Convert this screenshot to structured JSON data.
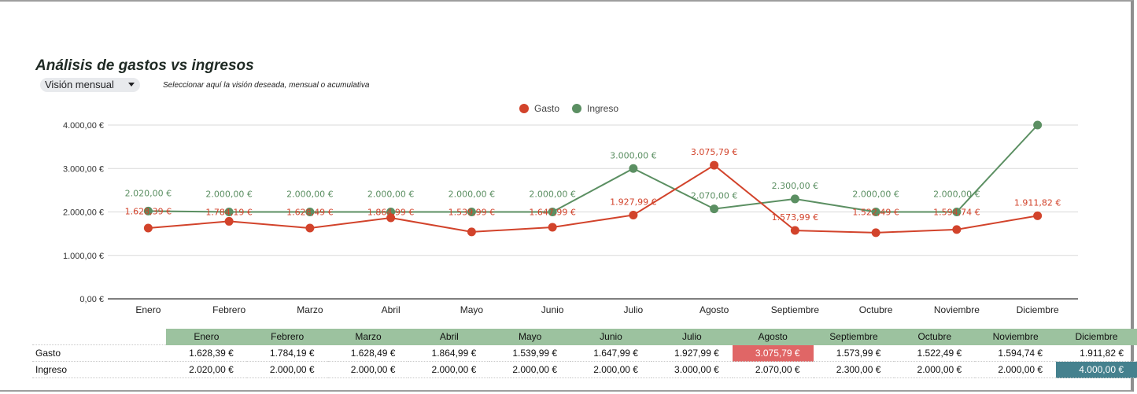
{
  "header": {
    "title": "Análisis de gastos vs ingresos",
    "view_select": {
      "selected": "Visión mensual"
    },
    "hint": "Seleccionar aquí la visión deseada, mensual o acumulativa"
  },
  "colors": {
    "gasto": "#d2432b",
    "ingreso": "#5b8f62",
    "table_header": "#9cc29f",
    "highlight_max_gasto": "#e06666",
    "highlight_max_ingreso": "#45818e"
  },
  "chart_data": {
    "type": "line",
    "title": "",
    "xlabel": "",
    "ylabel": "",
    "ylim": [
      0,
      4000
    ],
    "yticks": [
      0,
      1000,
      2000,
      3000,
      4000
    ],
    "ytick_labels": [
      "0,00 €",
      "1.000,00 €",
      "2.000,00 €",
      "3.000,00 €",
      "4.000,00 €"
    ],
    "grid": true,
    "legend_position": "top",
    "categories": [
      "Enero",
      "Febrero",
      "Marzo",
      "Abril",
      "Mayo",
      "Junio",
      "Julio",
      "Agosto",
      "Septiembre",
      "Octubre",
      "Noviembre",
      "Diciembre"
    ],
    "series": [
      {
        "name": "Gasto",
        "color": "#d2432b",
        "values": [
          1628.39,
          1784.19,
          1628.49,
          1864.99,
          1539.99,
          1647.99,
          1927.99,
          3075.79,
          1573.99,
          1522.49,
          1594.74,
          1911.82
        ],
        "labels": [
          "1.628,39 €",
          "1.784,19 €",
          "1.628,49 €",
          "1.864,99 €",
          "1.539,99 €",
          "1.647,99 €",
          "1.927,99 €",
          "3.075,79 €",
          "1.573,99 €",
          "1.522,49 €",
          "1.594,74 €",
          "1.911,82 €"
        ]
      },
      {
        "name": "Ingreso",
        "color": "#5b8f62",
        "values": [
          2020,
          2000,
          2000,
          2000,
          2000,
          2000,
          3000,
          2070,
          2300,
          2000,
          2000,
          4000
        ],
        "labels": [
          "2.020,00 €",
          "2.000,00 €",
          "2.000,00 €",
          "2.000,00 €",
          "2.000,00 €",
          "2.000,00 €",
          "3.000,00 €",
          "2.070,00 €",
          "2.300,00 €",
          "2.000,00 €",
          "2.000,00 €",
          ""
        ]
      }
    ]
  },
  "table": {
    "columns": [
      "Enero",
      "Febrero",
      "Marzo",
      "Abril",
      "Mayo",
      "Junio",
      "Julio",
      "Agosto",
      "Septiembre",
      "Octubre",
      "Noviembre",
      "Diciembre"
    ],
    "rows": [
      {
        "label": "Gasto",
        "cells": [
          "1.628,39 €",
          "1.784,19 €",
          "1.628,49 €",
          "1.864,99 €",
          "1.539,99 €",
          "1.647,99 €",
          "1.927,99 €",
          "3.075,79 €",
          "1.573,99 €",
          "1.522,49 €",
          "1.594,74 €",
          "1.911,82 €"
        ],
        "highlight_index": 7,
        "highlight": "red"
      },
      {
        "label": "Ingreso",
        "cells": [
          "2.020,00 €",
          "2.000,00 €",
          "2.000,00 €",
          "2.000,00 €",
          "2.000,00 €",
          "2.000,00 €",
          "3.000,00 €",
          "2.070,00 €",
          "2.300,00 €",
          "2.000,00 €",
          "2.000,00 €",
          "4.000,00 €"
        ],
        "highlight_index": 11,
        "highlight": "teal"
      }
    ]
  }
}
